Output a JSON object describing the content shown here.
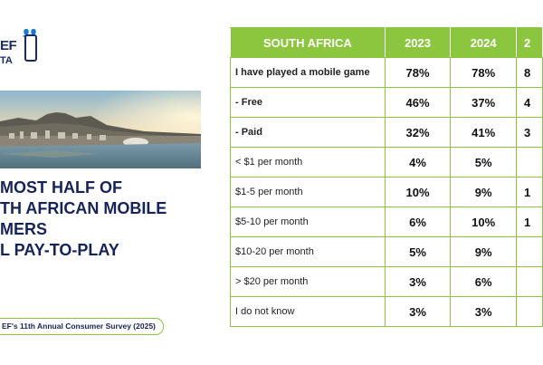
{
  "logo": {
    "line1": "EF",
    "line2": "TA"
  },
  "headline": {
    "line1": "MOST HALF OF",
    "line2": "TH AFRICAN MOBILE",
    "line3": "MERS",
    "line4": "L PAY-TO-PLAY"
  },
  "source": "EF's 11th Annual Consumer Survey (2025)",
  "colors": {
    "accent": "#8cc63f",
    "navy": "#16235a"
  },
  "table": {
    "columns": [
      "SOUTH AFRICA",
      "2023",
      "2024",
      "2"
    ],
    "rows": [
      {
        "label": "I have played a mobile game",
        "values": [
          "78%",
          "78%",
          "8"
        ]
      },
      {
        "label": " - Free",
        "values": [
          "46%",
          "37%",
          "4"
        ]
      },
      {
        "label": " - Paid",
        "values": [
          "32%",
          "41%",
          "3"
        ]
      },
      {
        "label": "< $1 per month",
        "values": [
          "4%",
          "5%",
          ""
        ]
      },
      {
        "label": "$1-5 per month",
        "values": [
          "10%",
          "9%",
          "1"
        ]
      },
      {
        "label": "$5-10 per month",
        "values": [
          "6%",
          "10%",
          "1"
        ]
      },
      {
        "label": "$10-20 per month",
        "values": [
          "5%",
          "9%",
          ""
        ]
      },
      {
        "label": "> $20 per month",
        "values": [
          "3%",
          "6%",
          ""
        ]
      },
      {
        "label": "I do not know",
        "values": [
          "3%",
          "3%",
          ""
        ]
      }
    ]
  }
}
